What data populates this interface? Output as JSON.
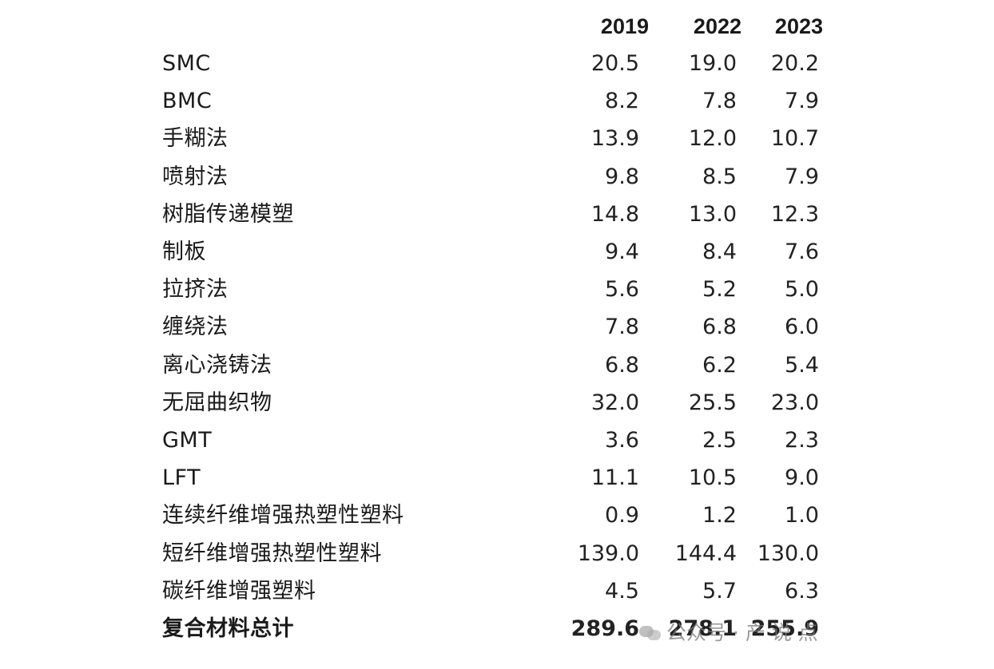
{
  "header": {
    "years": [
      "2019",
      "2022",
      "2023"
    ]
  },
  "rows": [
    {
      "label": "SMC",
      "v2019": "20.5",
      "v2022": "19.0",
      "v2023": "20.2"
    },
    {
      "label": "BMC",
      "v2019": "8.2",
      "v2022": "7.8",
      "v2023": "7.9"
    },
    {
      "label": "手糊法",
      "v2019": "13.9",
      "v2022": "12.0",
      "v2023": "10.7"
    },
    {
      "label": "喷射法",
      "v2019": "9.8",
      "v2022": "8.5",
      "v2023": "7.9"
    },
    {
      "label": "树脂传递模塑",
      "v2019": "14.8",
      "v2022": "13.0",
      "v2023": "12.3"
    },
    {
      "label": "制板",
      "v2019": "9.4",
      "v2022": "8.4",
      "v2023": "7.6"
    },
    {
      "label": "拉挤法",
      "v2019": "5.6",
      "v2022": "5.2",
      "v2023": "5.0"
    },
    {
      "label": "缠绕法",
      "v2019": "7.8",
      "v2022": "6.8",
      "v2023": "6.0"
    },
    {
      "label": "离心浇铸法",
      "v2019": "6.8",
      "v2022": "6.2",
      "v2023": "5.4"
    },
    {
      "label": "无屈曲织物",
      "v2019": "32.0",
      "v2022": "25.5",
      "v2023": "23.0"
    },
    {
      "label": "GMT",
      "v2019": "3.6",
      "v2022": "2.5",
      "v2023": "2.3"
    },
    {
      "label": "LFT",
      "v2019": "11.1",
      "v2022": "10.5",
      "v2023": "9.0"
    },
    {
      "label": "连续纤维增强热塑性塑料",
      "v2019": "0.9",
      "v2022": "1.2",
      "v2023": "1.0"
    },
    {
      "label": "短纤维增强热塑性塑料",
      "v2019": "139.0",
      "v2022": "144.4",
      "v2023": "130.0"
    },
    {
      "label": "碳纤维增强塑料",
      "v2019": "4.5",
      "v2022": "5.7",
      "v2023": "6.3"
    }
  ],
  "total": {
    "label": "复合材料总计",
    "v2019": "289.6",
    "v2022": "278.1",
    "v2023": "255.9"
  },
  "watermark": {
    "text": "公众号 · 产 说  点",
    "icon": "wechat-icon"
  }
}
